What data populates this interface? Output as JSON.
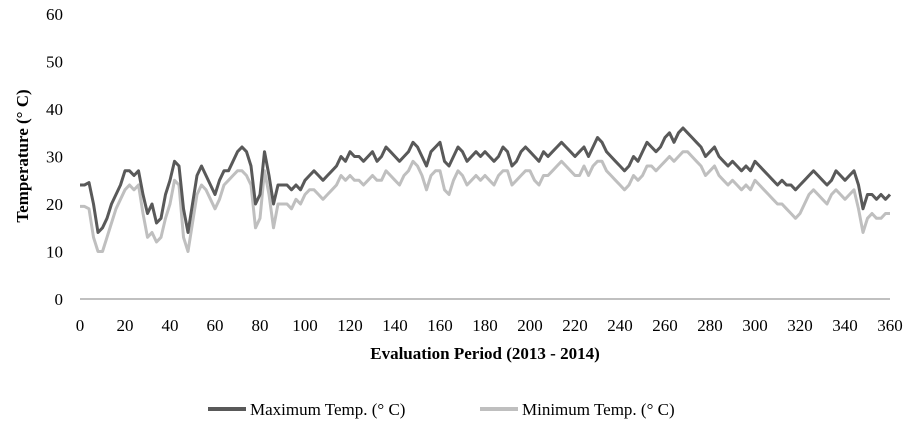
{
  "chart_data": {
    "type": "line",
    "title": "",
    "xlabel": "Evaluation Period (2013 - 2014)",
    "ylabel": "Temperature (° C)",
    "xlim": [
      0,
      360
    ],
    "ylim": [
      0,
      60
    ],
    "xticks": [
      0,
      20,
      40,
      60,
      80,
      100,
      120,
      140,
      160,
      180,
      200,
      220,
      240,
      260,
      280,
      300,
      320,
      340,
      360
    ],
    "yticks": [
      0,
      10,
      20,
      30,
      40,
      50,
      60
    ],
    "grid": false,
    "legend_position": "bottom",
    "series": [
      {
        "name": "Maximum Temp. (° C)",
        "color": "#595959",
        "x": [
          0,
          2,
          4,
          6,
          8,
          10,
          12,
          14,
          16,
          18,
          20,
          22,
          24,
          26,
          28,
          30,
          32,
          34,
          36,
          38,
          40,
          42,
          44,
          46,
          48,
          50,
          52,
          54,
          56,
          58,
          60,
          62,
          64,
          66,
          68,
          70,
          72,
          74,
          76,
          78,
          80,
          82,
          84,
          86,
          88,
          90,
          92,
          94,
          96,
          98,
          100,
          102,
          104,
          106,
          108,
          110,
          112,
          114,
          116,
          118,
          120,
          122,
          124,
          126,
          128,
          130,
          132,
          134,
          136,
          138,
          140,
          142,
          144,
          146,
          148,
          150,
          152,
          154,
          156,
          158,
          160,
          162,
          164,
          166,
          168,
          170,
          172,
          174,
          176,
          178,
          180,
          182,
          184,
          186,
          188,
          190,
          192,
          194,
          196,
          198,
          200,
          202,
          204,
          206,
          208,
          210,
          212,
          214,
          216,
          218,
          220,
          222,
          224,
          226,
          228,
          230,
          232,
          234,
          236,
          238,
          240,
          242,
          244,
          246,
          248,
          250,
          252,
          254,
          256,
          258,
          260,
          262,
          264,
          266,
          268,
          270,
          272,
          274,
          276,
          278,
          280,
          282,
          284,
          286,
          288,
          290,
          292,
          294,
          296,
          298,
          300,
          302,
          304,
          306,
          308,
          310,
          312,
          314,
          316,
          318,
          320,
          322,
          324,
          326,
          328,
          330,
          332,
          334,
          336,
          338,
          340,
          342,
          344,
          346,
          348,
          350,
          352,
          354,
          356,
          358,
          360
        ],
        "y": [
          24,
          24,
          24.5,
          20,
          14,
          15,
          17,
          20,
          22,
          24,
          27,
          27,
          26,
          27,
          22,
          18,
          20,
          16,
          17,
          22,
          25,
          29,
          28,
          19,
          14,
          20,
          26,
          28,
          26,
          24,
          22,
          25,
          27,
          27,
          29,
          31,
          32,
          31,
          28,
          20,
          22,
          31,
          26,
          20,
          24,
          24,
          24,
          23,
          24,
          23,
          25,
          26,
          27,
          26,
          25,
          26,
          27,
          28,
          30,
          29,
          31,
          30,
          30,
          29,
          30,
          31,
          29,
          30,
          32,
          31,
          30,
          29,
          30,
          31,
          33,
          32,
          30,
          28,
          31,
          32,
          33,
          29,
          28,
          30,
          32,
          31,
          29,
          30,
          31,
          30,
          31,
          30,
          29,
          30,
          32,
          31,
          28,
          29,
          31,
          32,
          31,
          30,
          29,
          31,
          30,
          31,
          32,
          33,
          32,
          31,
          30,
          31,
          32,
          30,
          32,
          34,
          33,
          31,
          30,
          29,
          28,
          27,
          28,
          30,
          29,
          31,
          33,
          32,
          31,
          32,
          34,
          35,
          33,
          35,
          36,
          35,
          34,
          33,
          32,
          30,
          31,
          32,
          30,
          29,
          28,
          29,
          28,
          27,
          28,
          27,
          29,
          28,
          27,
          26,
          25,
          24,
          25,
          24,
          24,
          23,
          24,
          25,
          26,
          27,
          26,
          25,
          24,
          25,
          27,
          26,
          25,
          26,
          27,
          24,
          19,
          22,
          22,
          21,
          22,
          21,
          22
        ]
      },
      {
        "name": "Minimum Temp. (° C)",
        "color": "#bfbfbf",
        "x": [
          0,
          2,
          4,
          6,
          8,
          10,
          12,
          14,
          16,
          18,
          20,
          22,
          24,
          26,
          28,
          30,
          32,
          34,
          36,
          38,
          40,
          42,
          44,
          46,
          48,
          50,
          52,
          54,
          56,
          58,
          60,
          62,
          64,
          66,
          68,
          70,
          72,
          74,
          76,
          78,
          80,
          82,
          84,
          86,
          88,
          90,
          92,
          94,
          96,
          98,
          100,
          102,
          104,
          106,
          108,
          110,
          112,
          114,
          116,
          118,
          120,
          122,
          124,
          126,
          128,
          130,
          132,
          134,
          136,
          138,
          140,
          142,
          144,
          146,
          148,
          150,
          152,
          154,
          156,
          158,
          160,
          162,
          164,
          166,
          168,
          170,
          172,
          174,
          176,
          178,
          180,
          182,
          184,
          186,
          188,
          190,
          192,
          194,
          196,
          198,
          200,
          202,
          204,
          206,
          208,
          210,
          212,
          214,
          216,
          218,
          220,
          222,
          224,
          226,
          228,
          230,
          232,
          234,
          236,
          238,
          240,
          242,
          244,
          246,
          248,
          250,
          252,
          254,
          256,
          258,
          260,
          262,
          264,
          266,
          268,
          270,
          272,
          274,
          276,
          278,
          280,
          282,
          284,
          286,
          288,
          290,
          292,
          294,
          296,
          298,
          300,
          302,
          304,
          306,
          308,
          310,
          312,
          314,
          316,
          318,
          320,
          322,
          324,
          326,
          328,
          330,
          332,
          334,
          336,
          338,
          340,
          342,
          344,
          346,
          348,
          350,
          352,
          354,
          356,
          358,
          360
        ],
        "y": [
          19.5,
          19.5,
          19,
          13,
          10,
          10,
          13,
          16,
          19,
          21,
          23,
          24,
          23,
          24,
          18,
          13,
          14,
          12,
          13,
          17,
          20,
          25,
          24,
          13,
          10,
          16,
          22,
          24,
          23,
          21,
          19,
          21,
          24,
          25,
          26,
          27,
          27,
          26,
          24,
          15,
          17,
          27,
          22,
          15,
          20,
          20,
          20,
          19,
          21,
          20,
          22,
          23,
          23,
          22,
          21,
          22,
          23,
          24,
          26,
          25,
          26,
          25,
          25,
          24,
          25,
          26,
          25,
          25,
          27,
          26,
          25,
          24,
          26,
          27,
          29,
          28,
          26,
          23,
          26,
          27,
          27,
          23,
          22,
          25,
          27,
          26,
          24,
          25,
          26,
          25,
          26,
          25,
          24,
          26,
          27,
          27,
          24,
          25,
          26,
          27,
          27,
          25,
          24,
          26,
          26,
          27,
          28,
          29,
          28,
          27,
          26,
          26,
          28,
          26,
          28,
          29,
          29,
          27,
          26,
          25,
          24,
          23,
          24,
          26,
          25,
          26,
          28,
          28,
          27,
          28,
          29,
          30,
          29,
          30,
          31,
          31,
          30,
          29,
          28,
          26,
          27,
          28,
          26,
          25,
          24,
          25,
          24,
          23,
          24,
          23,
          25,
          24,
          23,
          22,
          21,
          20,
          20,
          19,
          18,
          17,
          18,
          20,
          22,
          23,
          22,
          21,
          20,
          22,
          23,
          22,
          21,
          22,
          23,
          19,
          14,
          17,
          18,
          17,
          17,
          18,
          18
        ]
      }
    ]
  }
}
